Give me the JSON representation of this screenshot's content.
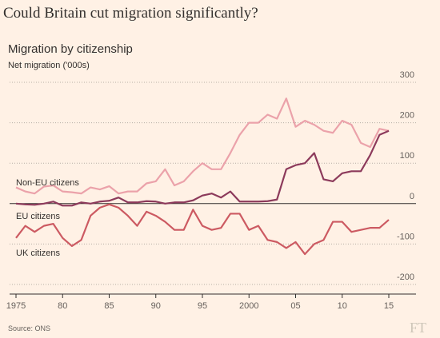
{
  "chart_data": {
    "type": "line",
    "title": "Could Britain cut migration significantly?",
    "subtitle": "Migration by citizenship",
    "y_label": "Net migration ('000s)",
    "source": "Source: ONS",
    "logo": "FT",
    "x": [
      1975,
      1976,
      1977,
      1978,
      1979,
      1980,
      1981,
      1982,
      1983,
      1984,
      1985,
      1986,
      1987,
      1988,
      1989,
      1990,
      1991,
      1992,
      1993,
      1994,
      1995,
      1996,
      1997,
      1998,
      1999,
      2000,
      2001,
      2002,
      2003,
      2004,
      2005,
      2006,
      2007,
      2008,
      2009,
      2010,
      2011,
      2012,
      2013,
      2014,
      2015
    ],
    "series": [
      {
        "name": "Non-EU citizens",
        "color": "#eba2aa",
        "values": [
          40,
          30,
          25,
          42,
          45,
          30,
          28,
          25,
          40,
          35,
          43,
          25,
          30,
          30,
          50,
          55,
          85,
          45,
          55,
          80,
          100,
          85,
          85,
          125,
          170,
          200,
          200,
          220,
          210,
          260,
          190,
          205,
          195,
          180,
          175,
          205,
          195,
          150,
          140,
          185,
          180
        ]
      },
      {
        "name": "EU citizens",
        "color": "#8c3a5b",
        "values": [
          0,
          -2,
          -3,
          0,
          5,
          -5,
          -5,
          3,
          0,
          5,
          7,
          15,
          3,
          3,
          6,
          5,
          0,
          3,
          3,
          8,
          20,
          25,
          15,
          30,
          5,
          5,
          5,
          6,
          10,
          85,
          95,
          100,
          125,
          60,
          55,
          75,
          80,
          80,
          120,
          170,
          180
        ]
      },
      {
        "name": "UK citizens",
        "color": "#cc5a62",
        "values": [
          -85,
          -55,
          -70,
          -55,
          -50,
          -85,
          -105,
          -90,
          -30,
          -10,
          -2,
          -10,
          -30,
          -55,
          -20,
          -30,
          -45,
          -65,
          -65,
          -15,
          -55,
          -65,
          -60,
          -25,
          -25,
          -65,
          -55,
          -90,
          -95,
          -110,
          -95,
          -125,
          -100,
          -90,
          -45,
          -45,
          -70,
          -65,
          -60,
          -60,
          -40
        ]
      }
    ],
    "xlim": [
      1975,
      2015
    ],
    "xticks": [
      1975,
      {
        "value": 1980,
        "label": "80"
      },
      {
        "value": 1985,
        "label": "85"
      },
      {
        "value": 1990,
        "label": "90"
      },
      {
        "value": 1995,
        "label": "95"
      },
      2000,
      {
        "value": 2005,
        "label": "05"
      },
      {
        "value": 2010,
        "label": "10"
      },
      {
        "value": 2015,
        "label": "15"
      }
    ],
    "ylim": [
      -200,
      300
    ],
    "yticks": [
      300,
      200,
      100,
      0,
      -100,
      -200
    ],
    "grid": true
  }
}
